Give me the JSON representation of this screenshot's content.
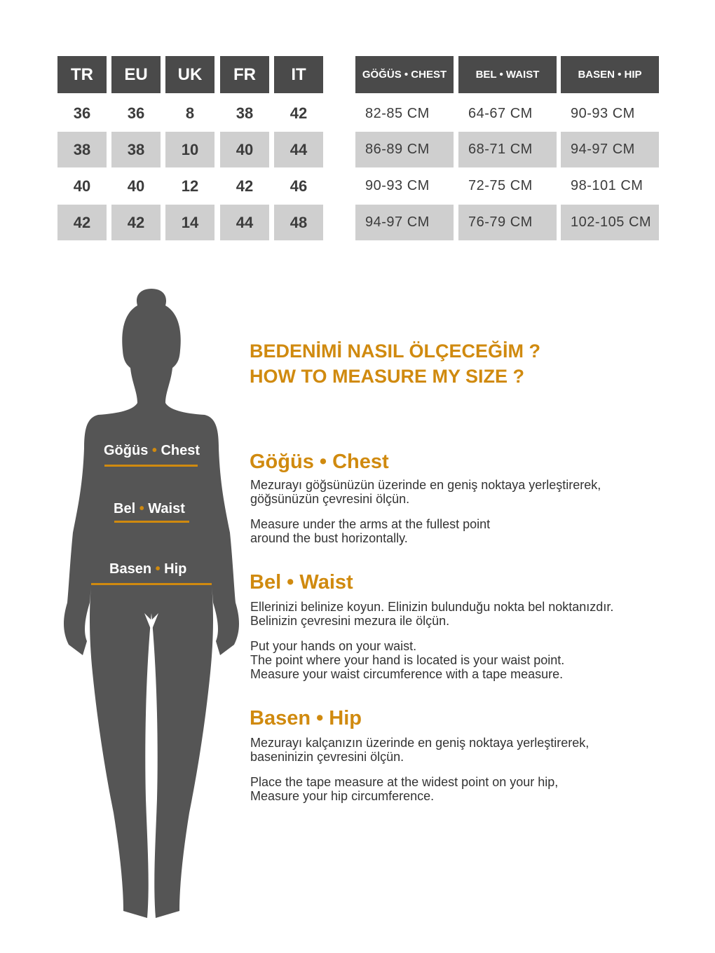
{
  "size_table": {
    "headers": [
      "TR",
      "EU",
      "UK",
      "FR",
      "IT"
    ],
    "rows": [
      [
        "36",
        "36",
        "8",
        "38",
        "42"
      ],
      [
        "38",
        "38",
        "10",
        "40",
        "44"
      ],
      [
        "40",
        "40",
        "12",
        "42",
        "46"
      ],
      [
        "42",
        "42",
        "14",
        "44",
        "48"
      ]
    ]
  },
  "measure_table": {
    "headers": [
      "GÖĞÜS • CHEST",
      "BEL • WAIST",
      "BASEN • HIP"
    ],
    "rows": [
      [
        "82-85 CM",
        "64-67 CM",
        "90-93 CM"
      ],
      [
        "86-89 CM",
        "68-71 CM",
        "94-97 CM"
      ],
      [
        "90-93 CM",
        "72-75 CM",
        "98-101 CM"
      ],
      [
        "94-97 CM",
        "76-79 CM",
        "102-105 CM"
      ]
    ]
  },
  "figure": {
    "chest": {
      "tr": "Göğüs",
      "dot": "•",
      "en": "Chest"
    },
    "waist": {
      "tr": "Bel",
      "dot": "•",
      "en": "Waist"
    },
    "hip": {
      "tr": "Basen",
      "dot": "•",
      "en": "Hip"
    }
  },
  "title": {
    "tr": "BEDENİMİ NASIL ÖLÇECEĞİM ?",
    "en": "HOW TO MEASURE MY SIZE ?"
  },
  "sections": [
    {
      "heading": "Göğüs • Chest",
      "tr": "Mezurayı göğsünüzün üzerinde en geniş noktaya yerleştirerek,\ngöğsünüzün çevresini ölçün.",
      "en": "Measure under the arms at the fullest point\naround the bust horizontally."
    },
    {
      "heading": "Bel • Waist",
      "tr": "Ellerinizi belinize koyun. Elinizin bulunduğu nokta bel noktanızdır.\nBelinizin çevresini mezura ile ölçün.",
      "en": "Put your hands on your waist.\nThe point where your hand is located is your waist point.\nMeasure your waist circumference with a tape measure."
    },
    {
      "heading": "Basen • Hip",
      "tr": "Mezurayı kalçanızın üzerinde en geniş noktaya yerleştirerek,\nbaseninizin çevresini ölçün.",
      "en": "Place the tape measure at the widest point on your hip,\nMeasure your hip circumference."
    }
  ],
  "colors": {
    "accent": "#d08a0f",
    "header": "#4a4a4a",
    "row_alt": "#cfcfcf",
    "silhouette": "#555555"
  }
}
